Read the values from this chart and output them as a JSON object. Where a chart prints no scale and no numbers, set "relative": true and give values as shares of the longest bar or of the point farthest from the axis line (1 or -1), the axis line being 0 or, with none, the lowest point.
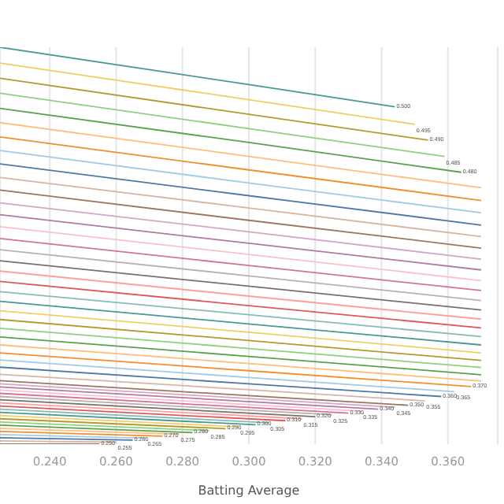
{
  "chart_data": {
    "type": "line",
    "relative": true,
    "xlabel": "Batting Average",
    "xlim": [
      0.225,
      0.375
    ],
    "xticks": [
      {
        "value": 0.24,
        "label": "0.240"
      },
      {
        "value": 0.26,
        "label": "0.260"
      },
      {
        "value": 0.28,
        "label": "0.280"
      },
      {
        "value": 0.3,
        "label": "0.300"
      },
      {
        "value": 0.32,
        "label": "0.320"
      },
      {
        "value": 0.34,
        "label": "0.340"
      },
      {
        "value": 0.36,
        "label": "0.360"
      }
    ],
    "grid": "x",
    "legend": false,
    "marker": "none",
    "line_style": "solid",
    "series": [
      {
        "name": "0.500",
        "color": "#499894",
        "x": [
          0.225,
          0.3,
          0.344
        ],
        "values": [
          1,
          0.906,
          0.85
        ]
      },
      {
        "name": "0.495",
        "color": "#f1ce63",
        "x": [
          0.225,
          0.3,
          0.35
        ],
        "values": [
          0.96,
          0.868,
          0.806
        ]
      },
      {
        "name": "0.490",
        "color": "#b6992d",
        "x": [
          0.225,
          0.3,
          0.354
        ],
        "values": [
          0.922,
          0.831,
          0.766
        ]
      },
      {
        "name": "0.485",
        "color": "#8cd17d",
        "x": [
          0.225,
          0.3,
          0.359
        ],
        "values": [
          0.884,
          0.795,
          0.725
        ]
      },
      {
        "name": "0.480",
        "color": "#59a14f",
        "x": [
          0.225,
          0.3,
          0.364
        ],
        "values": [
          0.846,
          0.76,
          0.685
        ]
      },
      {
        "color": "#ffbe7d",
        "x": [
          0.225,
          0.3,
          0.37
        ],
        "values": [
          0.81,
          0.725,
          0.646
        ]
      },
      {
        "color": "#f28e2b",
        "x": [
          0.225,
          0.3,
          0.37
        ],
        "values": [
          0.774,
          0.691,
          0.614
        ]
      },
      {
        "color": "#a0cbe8",
        "x": [
          0.225,
          0.3,
          0.37
        ],
        "values": [
          0.74,
          0.658,
          0.583
        ]
      },
      {
        "color": "#4e79a7",
        "x": [
          0.225,
          0.3,
          0.37
        ],
        "values": [
          0.706,
          0.626,
          0.552
        ]
      },
      {
        "color": "#d7b5a6",
        "x": [
          0.225,
          0.3,
          0.37
        ],
        "values": [
          0.672,
          0.595,
          0.523
        ]
      },
      {
        "color": "#9d7660",
        "x": [
          0.225,
          0.3,
          0.37
        ],
        "values": [
          0.64,
          0.564,
          0.494
        ]
      },
      {
        "color": "#d4a6c8",
        "x": [
          0.225,
          0.3,
          0.37
        ],
        "values": [
          0.608,
          0.535,
          0.466
        ]
      },
      {
        "color": "#b07aa1",
        "x": [
          0.225,
          0.3,
          0.37
        ],
        "values": [
          0.578,
          0.506,
          0.439
        ]
      },
      {
        "color": "#fabfd2",
        "x": [
          0.225,
          0.3,
          0.37
        ],
        "values": [
          0.548,
          0.478,
          0.412
        ]
      },
      {
        "color": "#d37295",
        "x": [
          0.225,
          0.3,
          0.37
        ],
        "values": [
          0.518,
          0.45,
          0.387
        ]
      },
      {
        "color": "#bab0ac",
        "x": [
          0.225,
          0.3,
          0.37
        ],
        "values": [
          0.49,
          0.424,
          0.362
        ]
      },
      {
        "color": "#79706e",
        "x": [
          0.225,
          0.3,
          0.37
        ],
        "values": [
          0.462,
          0.398,
          0.338
        ]
      },
      {
        "color": "#ff9d9a",
        "x": [
          0.225,
          0.3,
          0.37
        ],
        "values": [
          0.436,
          0.373,
          0.315
        ]
      },
      {
        "color": "#e15759",
        "x": [
          0.225,
          0.3,
          0.37
        ],
        "values": [
          0.41,
          0.349,
          0.293
        ]
      },
      {
        "color": "#86bcb6",
        "x": [
          0.225,
          0.3,
          0.37
        ],
        "values": [
          0.384,
          0.326,
          0.271
        ]
      },
      {
        "color": "#499894",
        "x": [
          0.225,
          0.3,
          0.37
        ],
        "values": [
          0.36,
          0.303,
          0.25
        ]
      },
      {
        "color": "#f1ce63",
        "x": [
          0.225,
          0.3,
          0.37
        ],
        "values": [
          0.336,
          0.282,
          0.23
        ]
      },
      {
        "color": "#b6992d",
        "x": [
          0.225,
          0.3,
          0.37
        ],
        "values": [
          0.314,
          0.261,
          0.211
        ]
      },
      {
        "color": "#8cd17d",
        "x": [
          0.225,
          0.3,
          0.37
        ],
        "values": [
          0.292,
          0.241,
          0.193
        ]
      },
      {
        "color": "#59a14f",
        "x": [
          0.225,
          0.3,
          0.37
        ],
        "values": [
          0.27,
          0.221,
          0.175
        ]
      },
      {
        "color": "#ffbe7d",
        "x": [
          0.225,
          0.3,
          0.37
        ],
        "values": [
          0.25,
          0.203,
          0.159
        ]
      },
      {
        "name": "0.370",
        "color": "#f28e2b",
        "x": [
          0.225,
          0.3,
          0.367
        ],
        "values": [
          0.23,
          0.185,
          0.145
        ]
      },
      {
        "name": "0.365",
        "color": "#a0cbe8",
        "x": [
          0.225,
          0.3,
          0.362
        ],
        "values": [
          0.212,
          0.168,
          0.132
        ]
      },
      {
        "name": "0.360",
        "color": "#4e79a7",
        "x": [
          0.225,
          0.3,
          0.358
        ],
        "values": [
          0.194,
          0.152,
          0.12
        ]
      },
      {
        "name": "0.355",
        "color": "#d7b5a6",
        "x": [
          0.225,
          0.3,
          0.353
        ],
        "values": [
          0.176,
          0.137,
          0.109
        ]
      },
      {
        "name": "0.350",
        "color": "#9d7660",
        "x": [
          0.225,
          0.348
        ],
        "values": [
          0.16,
          0.098
        ]
      },
      {
        "name": "0.345",
        "color": "#d4a6c8",
        "x": [
          0.225,
          0.344
        ],
        "values": [
          0.152,
          0.093
        ]
      },
      {
        "name": "0.340",
        "color": "#b07aa1",
        "x": [
          0.225,
          0.339
        ],
        "values": [
          0.144,
          0.088
        ]
      },
      {
        "name": "0.335",
        "color": "#fabfd2",
        "x": [
          0.225,
          0.334
        ],
        "values": [
          0.136,
          0.083
        ]
      },
      {
        "name": "0.330",
        "color": "#d37295",
        "x": [
          0.225,
          0.33
        ],
        "values": [
          0.128,
          0.078
        ]
      },
      {
        "name": "0.325",
        "color": "#bab0ac",
        "x": [
          0.225,
          0.325
        ],
        "values": [
          0.12,
          0.074
        ]
      },
      {
        "name": "0.320",
        "color": "#79706e",
        "x": [
          0.225,
          0.32
        ],
        "values": [
          0.112,
          0.069
        ]
      },
      {
        "name": "0.315",
        "color": "#ff9d9a",
        "x": [
          0.225,
          0.316
        ],
        "values": [
          0.104,
          0.064
        ]
      },
      {
        "name": "0.310",
        "color": "#e15759",
        "x": [
          0.225,
          0.311
        ],
        "values": [
          0.096,
          0.059
        ]
      },
      {
        "name": "0.305",
        "color": "#86bcb6",
        "x": [
          0.225,
          0.306
        ],
        "values": [
          0.088,
          0.054
        ]
      },
      {
        "name": "0.300",
        "color": "#499894",
        "x": [
          0.225,
          0.302
        ],
        "values": [
          0.08,
          0.049
        ]
      },
      {
        "name": "0.295",
        "color": "#f1ce63",
        "x": [
          0.225,
          0.297
        ],
        "values": [
          0.072,
          0.044
        ]
      },
      {
        "name": "0.290",
        "color": "#b6992d",
        "x": [
          0.225,
          0.293
        ],
        "values": [
          0.064,
          0.039
        ]
      },
      {
        "name": "0.285",
        "color": "#8cd17d",
        "x": [
          0.225,
          0.288
        ],
        "values": [
          0.056,
          0.034
        ]
      },
      {
        "name": "0.280",
        "color": "#59a14f",
        "x": [
          0.225,
          0.283
        ],
        "values": [
          0.048,
          0.029
        ]
      },
      {
        "name": "0.275",
        "color": "#ffbe7d",
        "x": [
          0.225,
          0.279
        ],
        "values": [
          0.04,
          0.025
        ]
      },
      {
        "name": "0.270",
        "color": "#f28e2b",
        "x": [
          0.225,
          0.274
        ],
        "values": [
          0.032,
          0.02
        ]
      },
      {
        "name": "0.265",
        "color": "#a0cbe8",
        "x": [
          0.225,
          0.269
        ],
        "values": [
          0.024,
          0.015
        ]
      },
      {
        "name": "0.260",
        "color": "#4e79a7",
        "x": [
          0.225,
          0.265
        ],
        "values": [
          0.016,
          0.01
        ]
      },
      {
        "name": "0.255",
        "color": "#d7b5a6",
        "x": [
          0.225,
          0.26
        ],
        "values": [
          0.008,
          0.005
        ]
      },
      {
        "name": "0.250",
        "color": "#9d7660",
        "x": [
          0.225,
          0.255
        ],
        "values": [
          0,
          0
        ]
      }
    ]
  }
}
